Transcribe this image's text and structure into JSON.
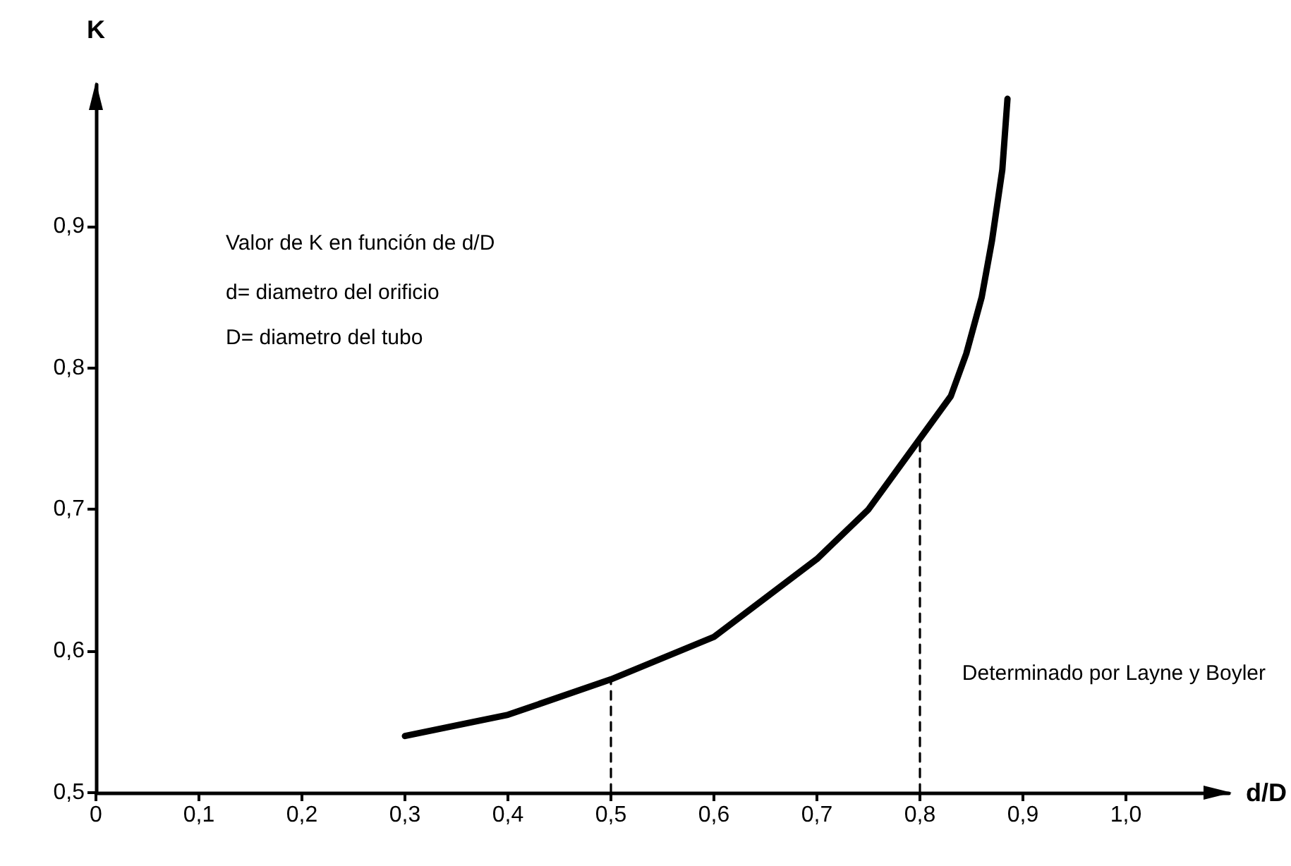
{
  "chart_data": {
    "type": "line",
    "xlabel": "d/D",
    "ylabel": "K",
    "annotations": [
      "Valor de K en función de d/D",
      "d= diametro del orificio",
      "D= diametro del tubo",
      "Determinado por Layne y Boyler"
    ],
    "series": [
      {
        "color": "#000000",
        "x": [
          0.3,
          0.4,
          0.5,
          0.6,
          0.7,
          0.75,
          0.8,
          0.83,
          0.845,
          0.86,
          0.87,
          0.88,
          0.885
        ],
        "values": [
          0.54,
          0.555,
          0.58,
          0.61,
          0.665,
          0.7,
          0.75,
          0.78,
          0.81,
          0.85,
          0.89,
          0.94,
          0.99
        ]
      },
      {
        "color": "#000000",
        "line_style": "dashed",
        "x": [
          0.5,
          0.5
        ],
        "values": [
          0.5,
          0.58
        ]
      },
      {
        "color": "#000000",
        "line_style": "dashed",
        "x": [
          0.8,
          0.8
        ],
        "values": [
          0.5,
          0.75
        ]
      }
    ],
    "xlim": [
      0,
      1.1
    ],
    "ylim": [
      0.5,
      1.0
    ],
    "xticks": [
      {
        "value": 0,
        "label": "0"
      },
      {
        "value": 0.1,
        "label": "0,1"
      },
      {
        "value": 0.2,
        "label": "0,2"
      },
      {
        "value": 0.3,
        "label": "0,3"
      },
      {
        "value": 0.4,
        "label": "0,4"
      },
      {
        "value": 0.5,
        "label": "0,5"
      },
      {
        "value": 0.6,
        "label": "0,6"
      },
      {
        "value": 0.7,
        "label": "0,7"
      },
      {
        "value": 0.8,
        "label": "0,8"
      },
      {
        "value": 0.9,
        "label": "0,9"
      },
      {
        "value": 1.0,
        "label": "1,0"
      }
    ],
    "yticks": [
      {
        "value": 0.5,
        "label": "0,5"
      },
      {
        "value": 0.6,
        "label": "0,6"
      },
      {
        "value": 0.7,
        "label": "0,7"
      },
      {
        "value": 0.8,
        "label": "0,8"
      },
      {
        "value": 0.9,
        "label": "0,9"
      }
    ],
    "grid": false,
    "legend": false,
    "marker": "none"
  }
}
